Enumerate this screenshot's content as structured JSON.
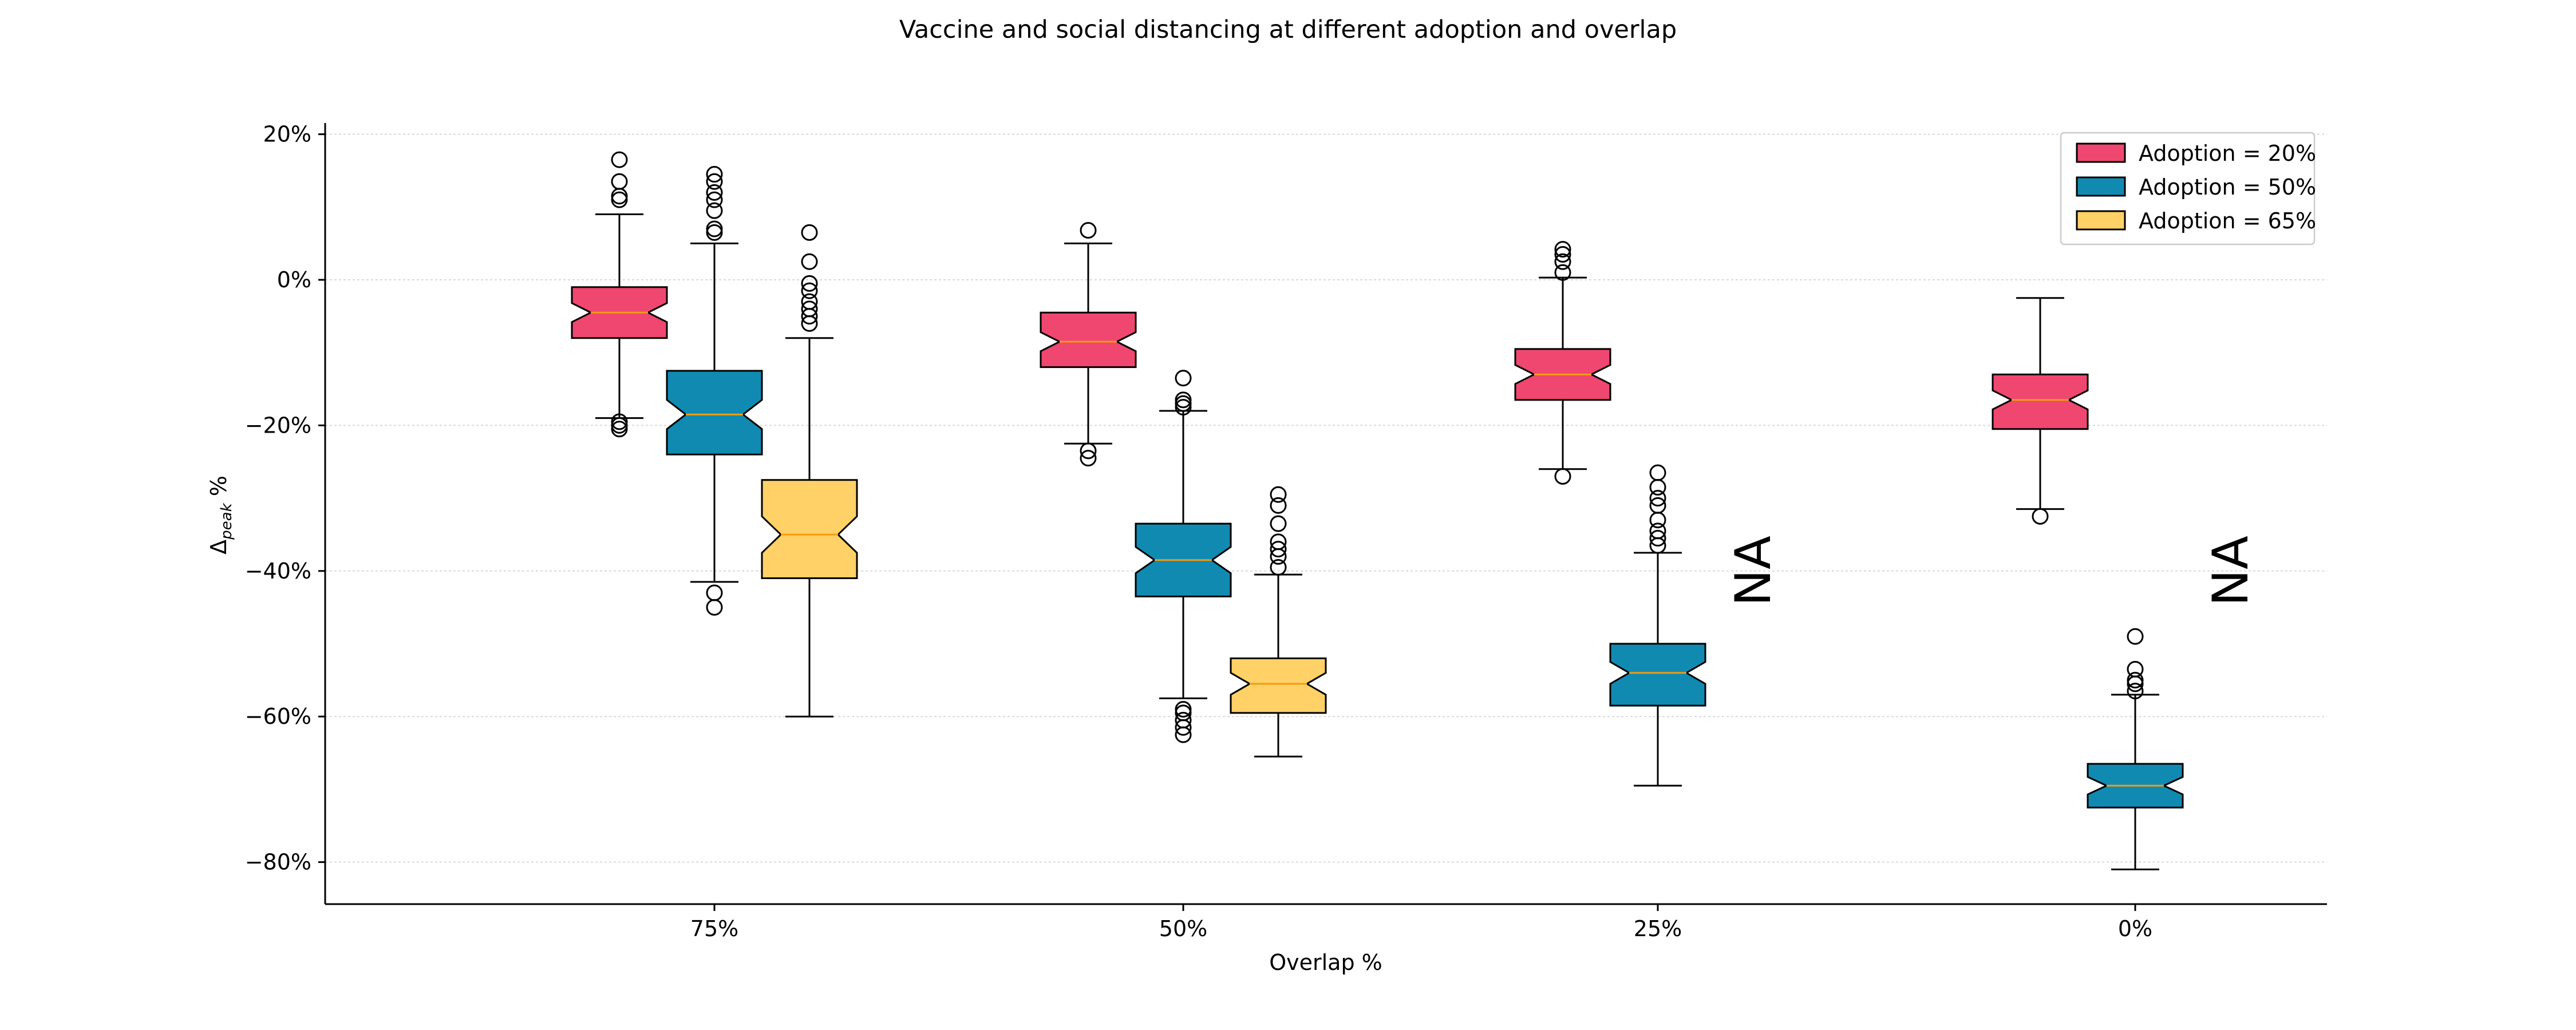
{
  "chart_data": {
    "type": "boxplot",
    "title": "Vaccine and social distancing at different adoption and overlap",
    "xlabel": "Overlap %",
    "ylabel_main": "Δ",
    "ylabel_sub": "peak",
    "ylabel_unit": " %",
    "ylim": [
      -86,
      21
    ],
    "y_ticks": [
      {
        "value": 20,
        "label": "20%"
      },
      {
        "value": 0,
        "label": "0%"
      },
      {
        "value": -20,
        "label": "−20%"
      },
      {
        "value": -40,
        "label": "−40%"
      },
      {
        "value": -60,
        "label": "−60%"
      },
      {
        "value": -80,
        "label": "−80%"
      }
    ],
    "grid": "horizontal",
    "notched": true,
    "legend_position": "top-right",
    "categories": [
      "75%",
      "50%",
      "25%",
      "0%"
    ],
    "not_available_label": "NA",
    "colors": {
      "median": "#f39c12",
      "grid": "#d9d9d9",
      "axis": "#000000"
    },
    "series": [
      {
        "name": "Adoption = 20%",
        "color": "#ef476f",
        "boxes": [
          {
            "whisker_low": -19,
            "q1": -8,
            "median": -4.5,
            "q3": -1,
            "whisker_high": 9,
            "notch": [
              -5.8,
              -3.2
            ],
            "fliers": [
              -19.5,
              -20,
              -20.5,
              11,
              11.5,
              13.5,
              16.5
            ]
          },
          {
            "whisker_low": -22.5,
            "q1": -12,
            "median": -8.5,
            "q3": -4.5,
            "whisker_high": 5,
            "notch": [
              -9.8,
              -7.2
            ],
            "fliers": [
              -23.5,
              -24.5,
              6.8
            ]
          },
          {
            "whisker_low": -26,
            "q1": -16.5,
            "median": -13,
            "q3": -9.5,
            "whisker_high": 0.3,
            "notch": [
              -14.3,
              -11.7
            ],
            "fliers": [
              -27,
              1,
              2.5,
              3.5,
              4.2
            ]
          },
          {
            "whisker_low": -31.5,
            "q1": -20.5,
            "median": -16.5,
            "q3": -13,
            "whisker_high": -2.5,
            "notch": [
              -17.8,
              -15.2
            ],
            "fliers": [
              -32.5
            ]
          }
        ]
      },
      {
        "name": "Adoption = 50%",
        "color": "#118ab2",
        "boxes": [
          {
            "whisker_low": -41.5,
            "q1": -24,
            "median": -18.5,
            "q3": -12.5,
            "whisker_high": 5,
            "notch": [
              -20.5,
              -16.5
            ],
            "fliers": [
              -43,
              -45,
              6.5,
              7,
              9.5,
              11,
              12,
              13.5,
              14.5
            ]
          },
          {
            "whisker_low": -57.5,
            "q1": -43.5,
            "median": -38.5,
            "q3": -33.5,
            "whisker_high": -18,
            "notch": [
              -40.3,
              -36.7
            ],
            "fliers": [
              -59,
              -59.5,
              -60.5,
              -61.5,
              -62.5,
              -13.5,
              -16.5,
              -17,
              -17.5
            ]
          },
          {
            "whisker_low": -69.5,
            "q1": -58.5,
            "median": -54,
            "q3": -50,
            "whisker_high": -37.5,
            "notch": [
              -55.5,
              -52.5
            ],
            "fliers": [
              -26.5,
              -28.5,
              -30,
              -31,
              -33,
              -34.5,
              -35.5,
              -36.5
            ]
          },
          {
            "whisker_low": -81,
            "q1": -72.5,
            "median": -69.5,
            "q3": -66.5,
            "whisker_high": -57,
            "notch": [
              -70.7,
              -68.3
            ],
            "fliers": [
              -49,
              -53.5,
              -55,
              -55.5,
              -56.5
            ]
          }
        ]
      },
      {
        "name": "Adoption = 65%",
        "color": "#ffd166",
        "boxes": [
          {
            "whisker_low": -60,
            "q1": -41,
            "median": -35,
            "q3": -27.5,
            "whisker_high": -8,
            "notch": [
              -37.5,
              -32.5
            ],
            "fliers": [
              -6,
              -5,
              -4,
              -3,
              -1.5,
              -0.5,
              2.5,
              6.5
            ]
          },
          {
            "whisker_low": -65.5,
            "q1": -59.5,
            "median": -55.5,
            "q3": -52,
            "whisker_high": -40.5,
            "notch": [
              -57,
              -54
            ],
            "fliers": [
              -39.5,
              -38,
              -37,
              -36,
              -33.5,
              -31,
              -29.5
            ]
          },
          null,
          null
        ]
      }
    ]
  }
}
